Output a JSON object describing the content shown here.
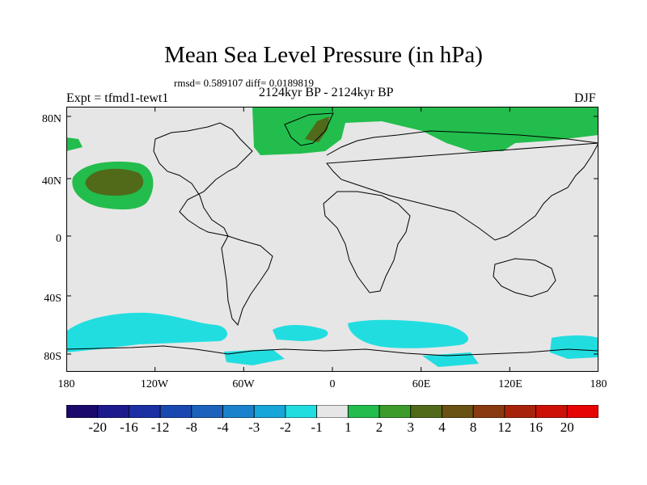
{
  "title": "Mean Sea Level Pressure (in hPa)",
  "stats": "rmsd= 0.589107 diff= 0.0189819",
  "period": "2124kyr BP - 2124kyr BP",
  "experiment": "Expt = tfmd1-tewt1",
  "season": "DJF",
  "lat_labels": [
    "80N",
    "40N",
    "0",
    "40S",
    "80S"
  ],
  "lon_labels": [
    "180",
    "120W",
    "60W",
    "0",
    "60E",
    "120E",
    "180"
  ],
  "colorbar": {
    "labels": [
      "-20",
      "-16",
      "-12",
      "-8",
      "-4",
      "-3",
      "-2",
      "-1",
      "1",
      "2",
      "3",
      "4",
      "8",
      "12",
      "16",
      "20"
    ],
    "colors": [
      "#1b0a6b",
      "#1d1a8e",
      "#1c2fa3",
      "#1948b0",
      "#1c62bd",
      "#1a82cc",
      "#17a6d8",
      "#22dde0",
      "#e6e6e6",
      "#22bd4c",
      "#3d9b2c",
      "#506a1a",
      "#6a5214",
      "#8a3a10",
      "#a8230c",
      "#cc1108",
      "#e60404"
    ]
  },
  "colors": {
    "background": "#e6e6e6",
    "positive_weak": "#22bd4c",
    "positive_mid": "#506a1a",
    "negative_weak": "#22dde0"
  }
}
